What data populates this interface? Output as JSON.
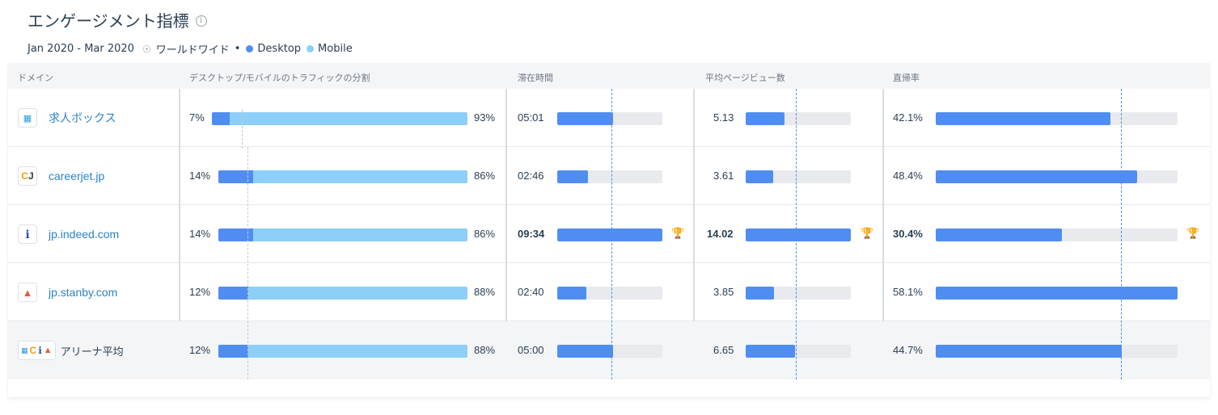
{
  "header": {
    "title": "エンゲージメント指標",
    "info": "i",
    "date_range": "Jan 2020 - Mar 2020",
    "region": "ワールドワイド",
    "bullet": "•",
    "legend": [
      {
        "label": "Desktop",
        "color": "#4f8ef0"
      },
      {
        "label": "Mobile",
        "color": "#8dcff8"
      }
    ]
  },
  "columns": {
    "domain": "ドメイン",
    "split": "デスクトップ/モバイルのトラフィックの分割",
    "duration": "滞在時間",
    "pages": "平均ページビュー数",
    "bounce": "直帰率"
  },
  "rows": [
    {
      "domain": "求人ボックス",
      "icon": "kyujinbox-icon",
      "desktop": "7%",
      "mobile": "93%",
      "desktop_pct": 7,
      "duration": "05:01",
      "duration_frac": 0.53,
      "pages": "5.13",
      "pages_frac": 0.37,
      "bounce": "42.1%",
      "bounce_frac": 0.724,
      "winner": false
    },
    {
      "domain": "careerjet.jp",
      "icon": "careerjet-icon",
      "desktop": "14%",
      "mobile": "86%",
      "desktop_pct": 14,
      "duration": "02:46",
      "duration_frac": 0.29,
      "pages": "3.61",
      "pages_frac": 0.26,
      "bounce": "48.4%",
      "bounce_frac": 0.833,
      "winner": false
    },
    {
      "domain": "jp.indeed.com",
      "icon": "indeed-icon",
      "desktop": "14%",
      "mobile": "86%",
      "desktop_pct": 14,
      "duration": "09:34",
      "duration_frac": 1.0,
      "pages": "14.02",
      "pages_frac": 1.0,
      "bounce": "30.4%",
      "bounce_frac": 0.523,
      "winner": true
    },
    {
      "domain": "jp.stanby.com",
      "icon": "stanby-icon",
      "desktop": "12%",
      "mobile": "88%",
      "desktop_pct": 12,
      "duration": "02:40",
      "duration_frac": 0.28,
      "pages": "3.85",
      "pages_frac": 0.27,
      "bounce": "58.1%",
      "bounce_frac": 1.0,
      "winner": false
    }
  ],
  "average": {
    "label": "アリーナ平均",
    "desktop": "12%",
    "mobile": "88%",
    "desktop_pct": 12,
    "duration": "05:00",
    "duration_frac": 0.53,
    "pages": "6.65",
    "pages_frac": 0.47,
    "bounce": "44.7%",
    "bounce_frac": 0.77
  },
  "trophy_icon": "🏆"
}
